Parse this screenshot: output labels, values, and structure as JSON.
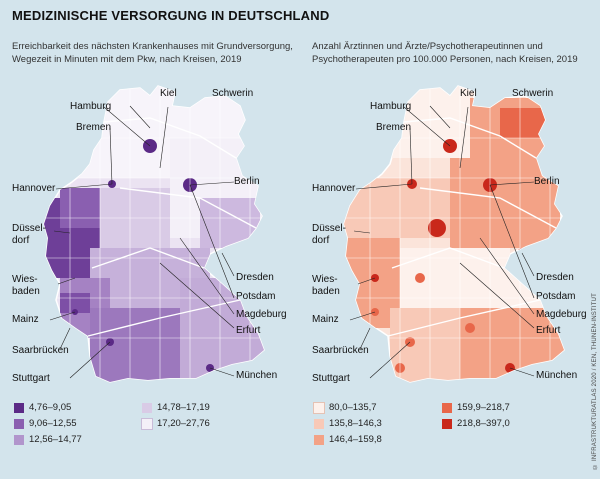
{
  "title": "MEDIZINISCHE VERSORGUNG IN DEUTSCHLAND",
  "left_map": {
    "subtitle_line1": "Erreichbarkeit des nächsten Krankenhauses mit Grundversorgung,",
    "subtitle_line2": "Wegezeit in Minuten mit dem Pkw, nach Kreisen, 2019",
    "legend": [
      {
        "label": "4,76–9,05",
        "color": "#5b2a86"
      },
      {
        "label": "9,06–12,55",
        "color": "#8a5fb0"
      },
      {
        "label": "12,56–14,77",
        "color": "#b195cc"
      },
      {
        "label": "14,78–17,19",
        "color": "#d9cbe6"
      },
      {
        "label": "17,20–27,76",
        "color": "#f4f0f8"
      }
    ]
  },
  "right_map": {
    "subtitle_line1": "Anzahl Ärztinnen und Ärzte/Psychotherapeutinnen und",
    "subtitle_line2": "Psychotherapeuten pro 100.000 Personen, nach Kreisen, 2019",
    "legend": [
      {
        "label": "80,0–135,7",
        "color": "#fdf1ec"
      },
      {
        "label": "135,8–146,3",
        "color": "#f8c9b7"
      },
      {
        "label": "146,4–159,8",
        "color": "#f3a286"
      },
      {
        "label": "159,9–218,7",
        "color": "#e8674a"
      },
      {
        "label": "218,8–397,0",
        "color": "#c9281b"
      }
    ]
  },
  "cities": {
    "kiel": "Kiel",
    "schwerin": "Schwerin",
    "hamburg": "Hamburg",
    "bremen": "Bremen",
    "berlin": "Berlin",
    "hannover": "Hannover",
    "duesseldorf1": "Düssel-",
    "duesseldorf2": "dorf",
    "wiesbaden1": "Wies-",
    "wiesbaden2": "baden",
    "dresden": "Dresden",
    "potsdam": "Potsdam",
    "mainz": "Mainz",
    "magdeburg": "Magdeburg",
    "erfurt": "Erfurt",
    "saarbruecken": "Saarbrücken",
    "stuttgart": "Stuttgart",
    "muenchen": "München"
  },
  "credit": "© INFRASTRUKTURATLAS 2020 / KEN, THÜNEN-INSTITUT"
}
